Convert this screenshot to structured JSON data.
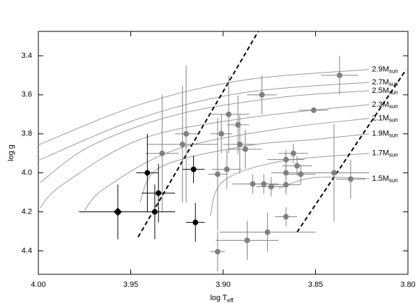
{
  "chart_data": {
    "type": "scatter",
    "xlabel": "log T",
    "xlabel_sub": "eff",
    "ylabel": "log g",
    "xlim": [
      4.0,
      3.8
    ],
    "xticks": [
      {
        "value": 4.0,
        "label": "4.00"
      },
      3.95,
      {
        "value": 3.9,
        "label": "3.90"
      },
      3.85,
      {
        "value": 3.8,
        "label": "3.80"
      }
    ],
    "ylim": [
      4.52,
      3.275
    ],
    "yticks": [
      3.4,
      3.6,
      3.8,
      {
        "value": 4.0,
        "label": "4.0"
      },
      4.2,
      4.4
    ],
    "tracks": [
      {
        "label": "2.9M",
        "label_sub": "sun",
        "color": "#999999",
        "x": [
          4.0,
          3.945,
          3.889,
          3.821
        ],
        "y": [
          3.857,
          3.65,
          3.525,
          3.47
        ]
      },
      {
        "label": "2.7M",
        "label_sub": "sun",
        "color": "#999999",
        "x": [
          4.0,
          3.945,
          3.889,
          3.821
        ],
        "y": [
          3.936,
          3.72,
          3.589,
          3.536
        ]
      },
      {
        "label": "2.5M",
        "label_sub": "sun",
        "color": "#999999",
        "x": [
          3.999,
          3.972,
          3.926,
          3.87,
          3.821
        ],
        "y": [
          4.05,
          3.864,
          3.704,
          3.614,
          3.579
        ]
      },
      {
        "label": "2.3M",
        "label_sub": "sun",
        "color": "#999999",
        "x": [
          3.999,
          3.987,
          3.945,
          3.889,
          3.821
        ],
        "y": [
          4.179,
          4.061,
          3.829,
          3.721,
          3.65
        ]
      },
      {
        "label": "2.1M",
        "label_sub": "sun",
        "color": "#999999",
        "x": [
          3.975,
          3.964,
          3.926,
          3.87,
          3.821
        ],
        "y": [
          4.193,
          4.079,
          3.882,
          3.775,
          3.721
        ]
      },
      {
        "label": "1.9M",
        "label_sub": "sun",
        "color": "#999999",
        "x": [
          3.945,
          3.934,
          3.889,
          3.851,
          3.821
        ],
        "y": [
          4.15,
          3.971,
          3.864,
          3.829,
          3.8
        ]
      },
      {
        "label": "1.7M",
        "label_sub": "sun",
        "color": "#999999",
        "x": [
          3.907,
          3.9,
          3.87,
          3.821
        ],
        "y": [
          4.221,
          4.043,
          3.943,
          3.9
        ]
      },
      {
        "label": "1.5M",
        "label_sub": "sun",
        "color": "#999999",
        "x": [
          3.87,
          3.851,
          3.821
        ],
        "y": [
          4.079,
          4.025,
          4.029
        ]
      }
    ],
    "boundaries": [
      {
        "color": "#000000",
        "x": [
          3.946,
          3.881
        ],
        "y": [
          4.329,
          3.275
        ]
      },
      {
        "color": "#000000",
        "x": [
          3.86,
          3.801
        ],
        "y": [
          4.304,
          3.471
        ]
      }
    ],
    "series": [
      {
        "color": "#808080",
        "marker": "circle",
        "x": [
          3.837,
          3.879,
          3.851,
          3.897,
          3.92,
          3.922,
          3.933,
          3.901,
          3.903,
          3.898,
          3.892,
          3.891,
          3.888,
          3.884,
          3.878,
          3.874,
          3.866,
          3.866,
          3.866,
          3.862,
          3.86,
          3.858,
          3.866,
          3.84,
          3.831,
          3.876,
          3.887,
          3.903
        ],
        "y": [
          3.5,
          3.6,
          3.679,
          3.7,
          3.8,
          3.854,
          3.9,
          3.8,
          4.007,
          3.982,
          3.754,
          3.854,
          3.879,
          4.057,
          4.057,
          4.071,
          4.0,
          3.932,
          4.061,
          3.9,
          3.964,
          4.007,
          4.225,
          4.0,
          4.032,
          4.304,
          4.346,
          4.404
        ],
        "xerr": [
          0.01,
          0.008,
          0.008,
          0.011,
          0.006,
          0.019,
          0.009,
          0.006,
          0.005,
          0.008,
          0.006,
          0.009,
          0.009,
          0.011,
          0.008,
          0.008,
          0.008,
          0.01,
          0.008,
          0.008,
          0.008,
          0.008,
          0.006,
          0.019,
          0.008,
          0.026,
          0.017,
          0.004
        ],
        "yerr": [
          0.1,
          0.1,
          0.01,
          0.2,
          0.35,
          0.3,
          0.3,
          0.1,
          0.29,
          0.1,
          0.15,
          0.15,
          0.1,
          0.05,
          0.05,
          0.05,
          0.1,
          0.05,
          0.05,
          0.05,
          0.05,
          0.05,
          0.05,
          0.25,
          0.1,
          0.1,
          0.1,
          0.1
        ]
      },
      {
        "color": "#000000",
        "marker": "circle",
        "x": [
          3.941,
          3.935,
          3.937,
          3.916,
          3.915
        ],
        "y": [
          4.0,
          4.104,
          4.2,
          3.982,
          4.254
        ],
        "xerr": [
          0.006,
          0.009,
          0.011,
          0.006,
          0.005
        ],
        "yerr": [
          0.2,
          0.15,
          0.14,
          0.07,
          0.1
        ]
      },
      {
        "color": "#000000",
        "marker": "diamond",
        "x": [
          3.957
        ],
        "y": [
          4.2
        ],
        "xerr": [
          0.021
        ],
        "yerr": [
          0.14
        ]
      }
    ]
  }
}
